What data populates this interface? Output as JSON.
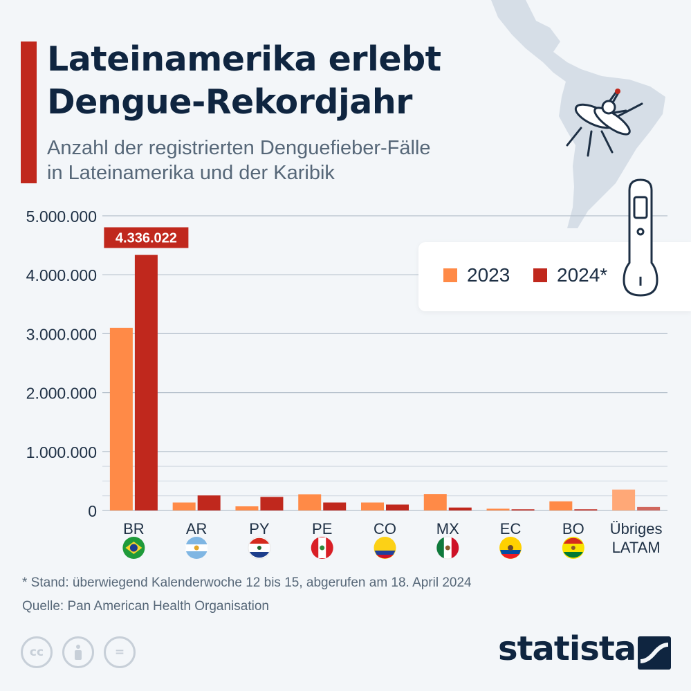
{
  "header": {
    "title_line1": "Lateinamerika erlebt",
    "title_line2": "Dengue-Rekordjahr",
    "subtitle_line1": "Anzahl der registrierten Denguefieber-Fälle",
    "subtitle_line2": "in Lateinamerika und der Karibik"
  },
  "legend": {
    "item1": "2023",
    "item2": "2024*"
  },
  "colors": {
    "series_2023": "#ff8a47",
    "series_2024": "#c0281d",
    "accent": "#c0281d",
    "title": "#0f2540",
    "text": "#566778"
  },
  "chart_data": {
    "type": "bar",
    "categories": [
      "BR",
      "AR",
      "PY",
      "PE",
      "CO",
      "MX",
      "EC",
      "BO",
      "Übriges LATAM"
    ],
    "series": [
      {
        "name": "2023",
        "values": [
          3100000,
          135000,
          70000,
          275000,
          135000,
          280000,
          30000,
          155000,
          355000
        ]
      },
      {
        "name": "2024*",
        "values": [
          4336022,
          255000,
          230000,
          135000,
          100000,
          50000,
          20000,
          20000,
          60000
        ]
      }
    ],
    "y_ticks": [
      "0",
      "1.000.000",
      "2.000.000",
      "3.000.000",
      "4.000.000",
      "5.000.000"
    ],
    "y_tick_values": [
      0,
      1000000,
      2000000,
      3000000,
      4000000,
      5000000
    ],
    "ylim": [
      0,
      5000000
    ],
    "annotation": {
      "label": "4.336.022",
      "category": "BR",
      "series": "2024*"
    },
    "grid": true,
    "legend_position": "top-right"
  },
  "flags": [
    "brazil-flag-icon",
    "argentina-flag-icon",
    "paraguay-flag-icon",
    "peru-flag-icon",
    "colombia-flag-icon",
    "mexico-flag-icon",
    "ecuador-flag-icon",
    "bolivia-flag-icon"
  ],
  "footer": {
    "footnote": "* Stand: überwiegend Kalenderwoche 12 bis 15, abgerufen am 18. April 2024",
    "source": "Quelle: Pan American Health Organisation",
    "brand": "statista",
    "license_icons": [
      "creative-commons-icon",
      "attribution-icon",
      "no-derivatives-icon"
    ]
  }
}
